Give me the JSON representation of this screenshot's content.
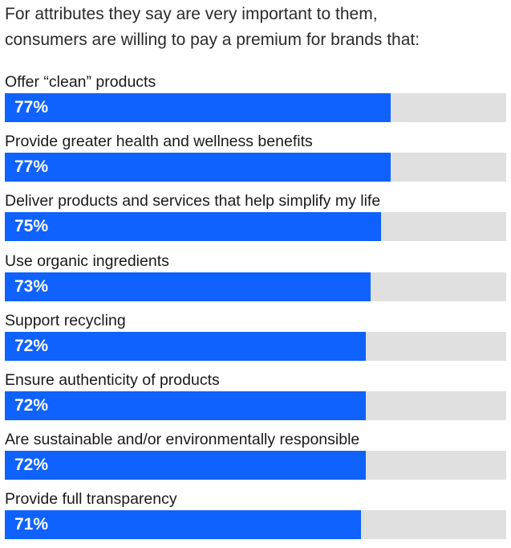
{
  "title_lines": [
    "For attributes they say are very important to them,",
    "consumers are willing to pay a premium for brands that:"
  ],
  "colors": {
    "bar_fill": "#0f62fe",
    "bar_track": "#e0e0e0",
    "value_text": "#ffffff"
  },
  "chart_data": {
    "type": "bar",
    "orientation": "horizontal",
    "title": "For attributes they say are very important to them, consumers are willing to pay a premium for brands that:",
    "categories": [
      "Offer “clean” products",
      "Provide greater health and wellness benefits",
      "Deliver products and services that help simplify my life",
      "Use organic ingredients",
      "Support recycling",
      "Ensure authenticity of products",
      "Are sustainable and/or environmentally responsible",
      "Provide full transparency"
    ],
    "values": [
      77,
      77,
      75,
      73,
      72,
      72,
      72,
      71
    ],
    "value_labels": [
      "77%",
      "77%",
      "75%",
      "73%",
      "72%",
      "72%",
      "72%",
      "71%"
    ],
    "xlim": [
      0,
      100
    ],
    "grid": false
  }
}
